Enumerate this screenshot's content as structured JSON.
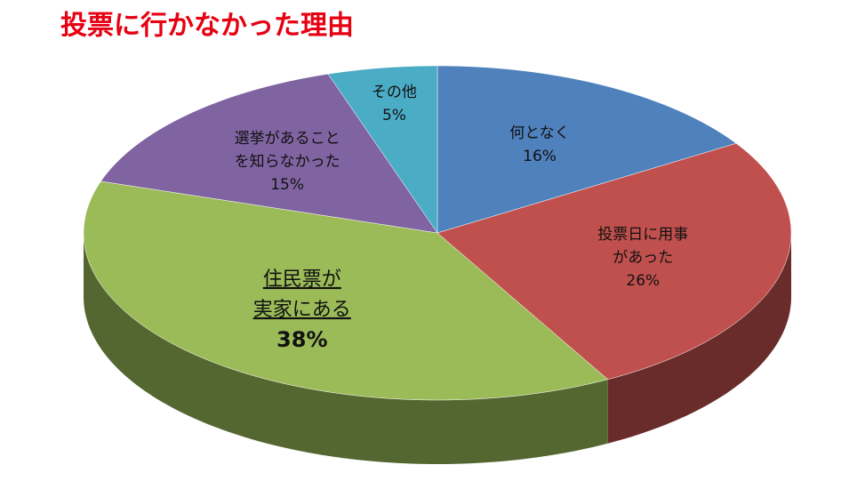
{
  "chart_data": {
    "type": "pie3d",
    "title": "投票に行かなかった理由",
    "categories": [
      [
        "何となく"
      ],
      [
        "投票日に用事",
        "があった"
      ],
      [
        "住民票が",
        "実家にある"
      ],
      [
        "選挙があること",
        "を知らなかった"
      ],
      [
        "その他"
      ]
    ],
    "values": [
      16,
      26,
      38,
      15,
      5
    ],
    "value_labels": [
      "16%",
      "26%",
      "38%",
      "15%",
      "5%"
    ],
    "colors": [
      "#4f81bd",
      "#c0504d",
      "#9bbb59",
      "#8064a2",
      "#4bacc6"
    ]
  }
}
